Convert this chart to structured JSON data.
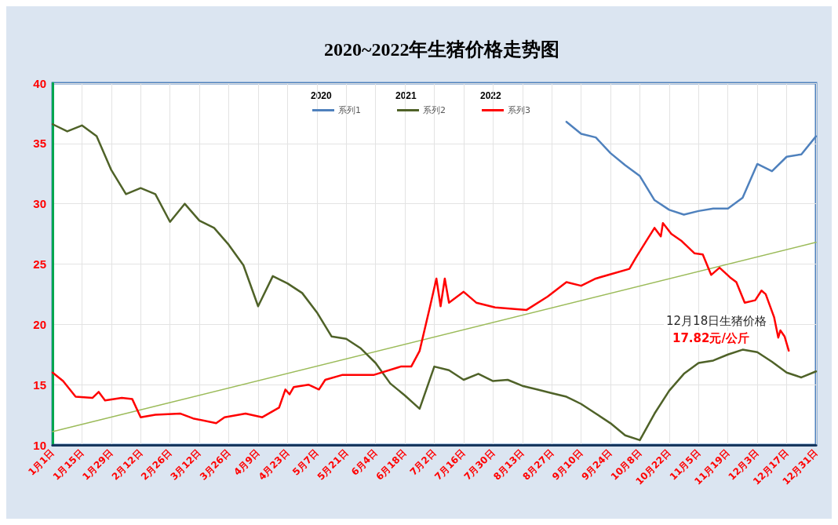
{
  "chart_data": {
    "type": "line",
    "title": "2020~2022年生猪价格走势图",
    "x": [
      "--01-01",
      "--01-08",
      "--01-15",
      "--01-22",
      "--01-29",
      "--02-05",
      "--02-12",
      "--02-19",
      "--02-26",
      "--03-05",
      "--03-12",
      "--03-19",
      "--03-26",
      "--04-02",
      "--04-09",
      "--04-16",
      "--04-23",
      "--04-30",
      "--05-07",
      "--05-14",
      "--05-21",
      "--05-28",
      "--06-04",
      "--06-11",
      "--06-18",
      "--06-25",
      "--07-02",
      "--07-09",
      "--07-16",
      "--07-23",
      "--07-30",
      "--08-06",
      "--08-13",
      "--08-20",
      "--08-27",
      "--09-03",
      "--09-10",
      "--09-17",
      "--09-24",
      "--10-01",
      "--10-08",
      "--10-15",
      "--10-22",
      "--10-29",
      "--11-05",
      "--11-12",
      "--11-19",
      "--11-26",
      "--12-03",
      "--12-10",
      "--12-17",
      "--12-24",
      "--12-31"
    ],
    "series": [
      {
        "name": "系列1",
        "color": "#4f81bd",
        "values": [
          null,
          null,
          null,
          null,
          null,
          null,
          null,
          null,
          null,
          null,
          null,
          null,
          null,
          null,
          null,
          null,
          null,
          null,
          null,
          null,
          null,
          null,
          null,
          null,
          null,
          null,
          null,
          null,
          null,
          null,
          null,
          null,
          null,
          null,
          null,
          36.8,
          35.8,
          35.5,
          34.2,
          33.2,
          32.3,
          30.3,
          29.5,
          29.1,
          29.4,
          29.6,
          29.6,
          30.5,
          33.3,
          32.7,
          33.9,
          34.1,
          35.6
        ]
      },
      {
        "name": "系列2",
        "color": "#4f6228",
        "values": [
          36.6,
          36.0,
          36.5,
          35.6,
          32.8,
          30.8,
          31.3,
          30.8,
          28.5,
          30.0,
          28.6,
          28.0,
          26.6,
          24.9,
          21.5,
          24.0,
          23.4,
          22.6,
          21.0,
          19.0,
          18.8,
          18.0,
          16.8,
          15.1,
          14.1,
          13.0,
          16.5,
          16.2,
          15.4,
          15.9,
          15.3,
          15.4,
          14.9,
          14.6,
          14.3,
          14.0,
          13.4,
          12.6,
          11.8,
          10.8,
          10.4,
          12.6,
          14.5,
          15.9,
          16.8,
          17.0,
          17.5,
          17.9,
          17.7,
          16.9,
          16.0,
          15.6,
          16.1
        ]
      },
      {
        "name": "系列3",
        "color": "#ff0000",
        "x": [
          "--01-01",
          "--01-06",
          "--01-12",
          "--01-20",
          "--01-23",
          "--01-26",
          "--02-03",
          "--02-08",
          "--02-12",
          "--02-19",
          "--03-03",
          "--03-09",
          "--03-20",
          "--03-24",
          "--04-03",
          "--04-11",
          "--04-19",
          "--04-22",
          "--04-24",
          "--04-26",
          "--05-03",
          "--05-08",
          "--05-11",
          "--05-19",
          "--06-03",
          "--06-16",
          "--06-21",
          "--06-25",
          "--06-30",
          "--07-03",
          "--07-05",
          "--07-07",
          "--07-09",
          "--07-16",
          "--07-22",
          "--07-31",
          "--08-15",
          "--08-25",
          "--09-03",
          "--09-10",
          "--09-17",
          "--09-25",
          "--10-03",
          "--10-06",
          "--10-11",
          "--10-15",
          "--10-18",
          "--10-19",
          "--10-23",
          "--10-28",
          "--11-03",
          "--11-07",
          "--11-11",
          "--11-15",
          "--11-20",
          "--11-23",
          "--11-27",
          "--12-02",
          "--12-05",
          "--12-07",
          "--12-11",
          "--12-13",
          "--12-14",
          "--12-16",
          "--12-18"
        ],
        "values": [
          16.0,
          15.3,
          14.0,
          13.9,
          14.4,
          13.7,
          13.9,
          13.8,
          12.3,
          12.5,
          12.6,
          12.2,
          11.8,
          12.3,
          12.6,
          12.3,
          13.1,
          14.6,
          14.2,
          14.8,
          15.0,
          14.6,
          15.4,
          15.8,
          15.8,
          16.5,
          16.5,
          17.8,
          21.5,
          23.8,
          21.5,
          23.8,
          21.8,
          22.7,
          21.8,
          21.4,
          21.2,
          22.3,
          23.5,
          23.2,
          23.8,
          24.2,
          24.6,
          25.5,
          26.9,
          28.0,
          27.3,
          28.4,
          27.5,
          26.9,
          25.9,
          25.8,
          24.1,
          24.7,
          23.9,
          23.5,
          21.8,
          22.0,
          22.8,
          22.5,
          20.6,
          18.9,
          19.5,
          19.0,
          17.82
        ]
      },
      {
        "color": "#9bbb59",
        "x": [
          "--01-01",
          "--12-31"
        ],
        "values": [
          11.1,
          26.8
        ]
      }
    ],
    "xlim": [
      "--01-01",
      "--12-31"
    ],
    "xticks": [
      {
        "value": "--01-01",
        "label": "1月1日"
      },
      {
        "value": "--01-15",
        "label": "1月15日"
      },
      {
        "value": "--01-29",
        "label": "1月29日"
      },
      {
        "value": "--02-12",
        "label": "2月12日"
      },
      {
        "value": "--02-26",
        "label": "2月26日"
      },
      {
        "value": "--03-12",
        "label": "3月12日"
      },
      {
        "value": "--03-26",
        "label": "3月26日"
      },
      {
        "value": "--04-09",
        "label": "4月9日"
      },
      {
        "value": "--04-23",
        "label": "4月23日"
      },
      {
        "value": "--05-07",
        "label": "5月7日"
      },
      {
        "value": "--05-21",
        "label": "5月21日"
      },
      {
        "value": "--06-04",
        "label": "6月4日"
      },
      {
        "value": "--06-18",
        "label": "6月18日"
      },
      {
        "value": "--07-02",
        "label": "7月2日"
      },
      {
        "value": "--07-16",
        "label": "7月16日"
      },
      {
        "value": "--07-30",
        "label": "7月30日"
      },
      {
        "value": "--08-13",
        "label": "8月13日"
      },
      {
        "value": "--08-27",
        "label": "8月27日"
      },
      {
        "value": "--09-10",
        "label": "9月10日"
      },
      {
        "value": "--09-24",
        "label": "9月24日"
      },
      {
        "value": "--10-08",
        "label": "10月8日"
      },
      {
        "value": "--10-22",
        "label": "10月22日"
      },
      {
        "value": "--11-05",
        "label": "11月5日"
      },
      {
        "value": "--11-19",
        "label": "11月19日"
      },
      {
        "value": "--12-03",
        "label": "12月3日"
      },
      {
        "value": "--12-17",
        "label": "12月17日"
      },
      {
        "value": "--12-31",
        "label": "12月31日"
      }
    ],
    "ylim": [
      10,
      40
    ],
    "yticks": [
      10,
      15,
      20,
      25,
      30,
      35,
      40
    ],
    "grid": true,
    "legend": "top",
    "marker": "none",
    "annotations": [
      "2020",
      "2021",
      "2022",
      "12月18日生猪价格",
      "17.82元/公斤"
    ]
  }
}
